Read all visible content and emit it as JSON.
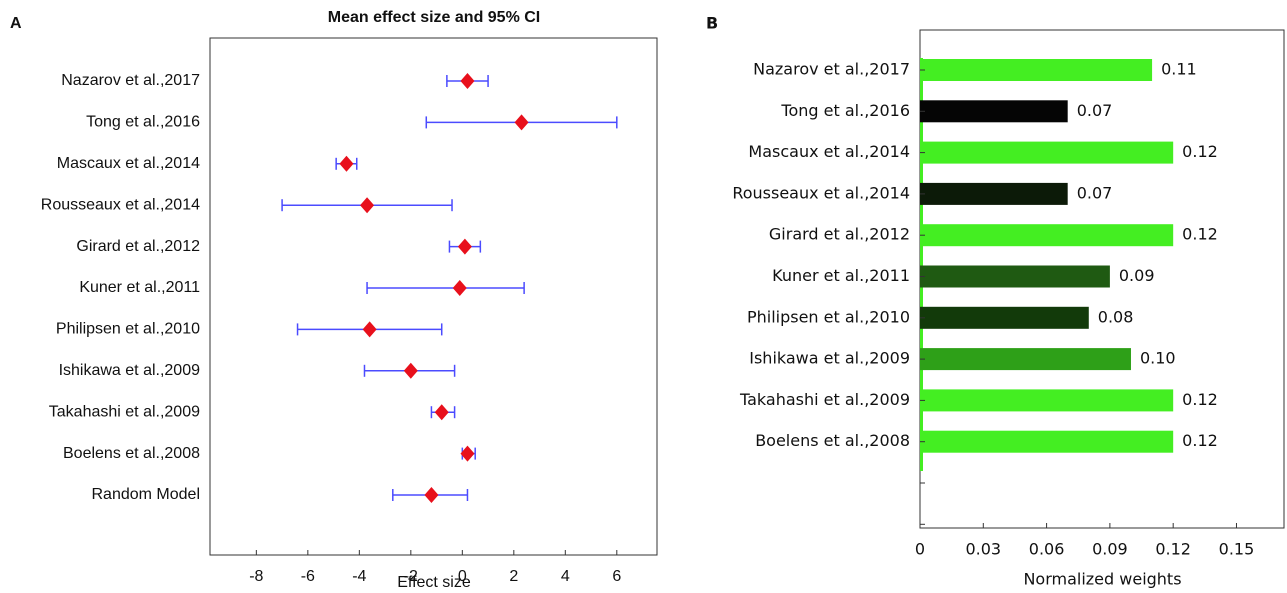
{
  "chart_data": [
    {
      "type": "forest",
      "panel": "A",
      "title": "Mean effect size and 95% CI",
      "x_label": "Effect size",
      "categories": [
        "Nazarov et al.,2017",
        "Tong et al.,2016",
        "Mascaux et al.,2014",
        "Rousseaux et al.,2014",
        "Girard et al.,2012",
        "Kuner et al.,2011",
        "Philipsen et al.,2010",
        "Ishikawa et al.,2009",
        "Takahashi et al.,2009",
        "Boelens et al.,2008",
        "Random Model"
      ],
      "values": [
        0.2,
        2.3,
        -4.5,
        -3.7,
        0.1,
        -0.1,
        -3.6,
        -2.0,
        -0.8,
        0.2,
        -1.2
      ],
      "lower": [
        -0.6,
        -1.4,
        -4.9,
        -7.0,
        -0.5,
        -3.7,
        -6.4,
        -3.8,
        -1.2,
        0.0,
        -2.7
      ],
      "upper": [
        1.0,
        6.0,
        -4.1,
        -0.4,
        0.7,
        2.4,
        -0.8,
        -0.3,
        -0.3,
        0.5,
        0.2
      ],
      "color": "#e8101c",
      "ci_color": "#4b4bff",
      "xlim": [
        -9.8,
        7.6
      ],
      "xticks": [
        -8,
        -6,
        -4,
        -2,
        0,
        2,
        4,
        6
      ]
    },
    {
      "type": "hbar",
      "panel": "B",
      "x_label": "Normalized weights",
      "categories": [
        "Nazarov et al.,2017",
        "Tong et al.,2016",
        "Mascaux et al.,2014",
        "Rousseaux et al.,2014",
        "Girard et al.,2012",
        "Kuner et al.,2011",
        "Philipsen et al.,2010",
        "Ishikawa et al.,2009",
        "Takahashi et al.,2009",
        "Boelens et al.,2008"
      ],
      "values": [
        0.11,
        0.07,
        0.12,
        0.07,
        0.12,
        0.09,
        0.08,
        0.1,
        0.12,
        0.12
      ],
      "value_labels": [
        "0.11",
        "0.07",
        "0.12",
        "0.07",
        "0.12",
        "0.09",
        "0.08",
        "0.10",
        "0.12",
        "0.12"
      ],
      "colors": [
        "#44ee22",
        "#050505",
        "#44ee22",
        "#0c1a08",
        "#44ee22",
        "#1f5a12",
        "#123a0a",
        "#2ea018",
        "#44ee22",
        "#44ee22"
      ],
      "xlim": [
        0,
        0.173
      ],
      "xticks": [
        0,
        0.03,
        0.06,
        0.09,
        0.12,
        0.15
      ]
    }
  ]
}
